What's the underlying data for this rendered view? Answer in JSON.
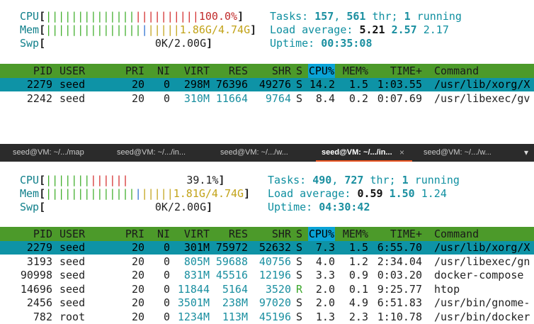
{
  "top": {
    "meters": {
      "cpu": {
        "label": "CPU",
        "bars_g": "||||||||||||||",
        "bars_r": "||||||||||",
        "value": "100.0%"
      },
      "mem": {
        "label": "Mem",
        "bars_g": "|||||||||||||||",
        "bars_b": "|",
        "bars_y": "|||||",
        "value": "1.86G/4.74G"
      },
      "swp": {
        "label": "Swp",
        "value": "0K/2.00G"
      }
    },
    "info": {
      "tasks_label": "Tasks: ",
      "tasks": "157",
      "sep1": ", ",
      "thr": "561",
      "thr_label": " thr; ",
      "running": "1",
      "running_label": " running",
      "load_label": "Load average: ",
      "load1": "5.21",
      "load5": "2.57",
      "load15": "2.17",
      "uptime_label": "Uptime: ",
      "uptime": "00:35:08"
    },
    "header": [
      "PID",
      "USER",
      "PRI",
      "NI",
      "VIRT",
      "RES",
      "SHR",
      "S",
      "CPU%",
      "MEM%",
      "TIME+",
      "Command"
    ],
    "rows": [
      {
        "pid": "2279",
        "user": "seed",
        "pri": "20",
        "ni": "0",
        "virt": "298M",
        "res": "76396",
        "shr": "49276",
        "s": "S",
        "cpu": "14.2",
        "mem": "1.5",
        "time": "1:03.55",
        "cmd": "/usr/lib/xorg/X"
      },
      {
        "pid": "2242",
        "user": "seed",
        "pri": "20",
        "ni": "0",
        "virt": "310M",
        "res": "11664",
        "shr": "9764",
        "s": "S",
        "cpu": "8.4",
        "mem": "0.2",
        "time": "0:07.69",
        "cmd": "/usr/libexec/gv"
      }
    ]
  },
  "tabs": [
    {
      "label": "seed@VM: ~/.../map"
    },
    {
      "label": "seed@VM: ~/.../in..."
    },
    {
      "label": "seed@VM: ~/.../w..."
    },
    {
      "label": "seed@VM: ~/.../in..."
    },
    {
      "label": "seed@VM: ~/.../w..."
    }
  ],
  "tab_close": "×",
  "tab_menu": "▾",
  "bottom": {
    "meters": {
      "cpu": {
        "label": "CPU",
        "bars_g": "|||||||",
        "bars_r": "||||||",
        "value": "39.1%"
      },
      "mem": {
        "label": "Mem",
        "bars_g": "||||||||||||||",
        "bars_b": "|",
        "bars_y": "|||||",
        "value": "1.81G/4.74G"
      },
      "swp": {
        "label": "Swp",
        "value": "0K/2.00G"
      }
    },
    "info": {
      "tasks_label": "Tasks: ",
      "tasks": "490",
      "sep1": ", ",
      "thr": "727",
      "thr_label": " thr; ",
      "running": "1",
      "running_label": " running",
      "load_label": "Load average: ",
      "load1": "0.59",
      "load5": "1.50",
      "load15": "1.24",
      "uptime_label": "Uptime: ",
      "uptime": "04:30:42"
    },
    "header": [
      "PID",
      "USER",
      "PRI",
      "NI",
      "VIRT",
      "RES",
      "SHR",
      "S",
      "CPU%",
      "MEM%",
      "TIME+",
      "Command"
    ],
    "rows": [
      {
        "pid": "2279",
        "user": "seed",
        "pri": "20",
        "ni": "0",
        "virt": "301M",
        "res": "75972",
        "shr": "52632",
        "s": "S",
        "cpu": "7.3",
        "mem": "1.5",
        "time": "6:55.70",
        "cmd": "/usr/lib/xorg/X"
      },
      {
        "pid": "3193",
        "user": "seed",
        "pri": "20",
        "ni": "0",
        "virt": "805M",
        "res": "59688",
        "shr": "40756",
        "s": "S",
        "cpu": "4.0",
        "mem": "1.2",
        "time": "2:34.04",
        "cmd": "/usr/libexec/gn"
      },
      {
        "pid": "90998",
        "user": "seed",
        "pri": "20",
        "ni": "0",
        "virt": "831M",
        "res": "45516",
        "shr": "12196",
        "s": "S",
        "cpu": "3.3",
        "mem": "0.9",
        "time": "0:03.20",
        "cmd": "docker-compose"
      },
      {
        "pid": "14696",
        "user": "seed",
        "pri": "20",
        "ni": "0",
        "virt": "11844",
        "res": "5164",
        "shr": "3520",
        "s": "R",
        "cpu": "2.0",
        "mem": "0.1",
        "time": "9:25.77",
        "cmd": "htop"
      },
      {
        "pid": "2456",
        "user": "seed",
        "pri": "20",
        "ni": "0",
        "virt": "3501M",
        "res": "238M",
        "shr": "97020",
        "s": "S",
        "cpu": "2.0",
        "mem": "4.9",
        "time": "6:51.83",
        "cmd": "/usr/bin/gnome-"
      },
      {
        "pid": "782",
        "user": "root",
        "pri": "20",
        "ni": "0",
        "virt": "1234M",
        "res": "113M",
        "shr": "45196",
        "s": "S",
        "cpu": "1.3",
        "mem": "2.3",
        "time": "1:10.78",
        "cmd": "/usr/bin/docker"
      }
    ]
  }
}
